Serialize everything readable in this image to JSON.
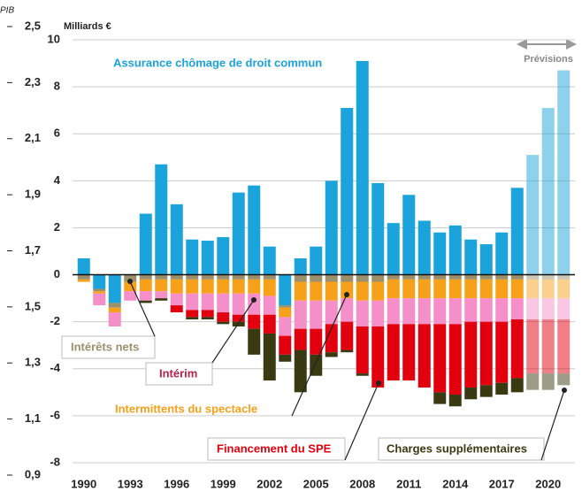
{
  "chart_data": {
    "type": "bar",
    "stacked": true,
    "title": "Milliards €",
    "y2_label": "PIB",
    "forecast_label": "Prévisions",
    "forecast_start": 2019,
    "categories": [
      "1990",
      null,
      null,
      "1993",
      null,
      null,
      "1996",
      null,
      null,
      "1999",
      null,
      null,
      "2002",
      null,
      null,
      "2005",
      null,
      null,
      "2008",
      null,
      null,
      "2011",
      null,
      null,
      "2014",
      null,
      null,
      "2017",
      null,
      null,
      "2020",
      null
    ],
    "series": [
      {
        "name": "Assurance chômage de droit commun",
        "color": "#1ba3dc",
        "values": [
          0.7,
          -0.6,
          -1.2,
          0,
          2.6,
          4.7,
          3.0,
          1.5,
          1.45,
          1.6,
          3.5,
          3.8,
          1.2,
          -1.3,
          0.7,
          1.2,
          4.0,
          7.1,
          9.1,
          3.9,
          2.2,
          3.4,
          2.3,
          1.8,
          2.1,
          1.5,
          1.3,
          1.8,
          3.7,
          5.1,
          7.1,
          8.7
        ]
      },
      {
        "name": "Intérêts nets",
        "color": "#9c8f6b",
        "values": [
          -0.2,
          -0.1,
          -0.2,
          -0.3,
          -0.2,
          -0.2,
          -0.2,
          -0.2,
          -0.2,
          -0.2,
          -0.2,
          -0.2,
          -0.2,
          -0.1,
          -0.3,
          -0.3,
          -0.3,
          -0.3,
          -0.3,
          -0.3,
          -0.2,
          -0.2,
          -0.2,
          -0.2,
          -0.2,
          -0.2,
          -0.2,
          -0.2,
          -0.2,
          -0.2,
          -0.2,
          -0.2
        ]
      },
      {
        "name": "Intermittents du spectacle",
        "color": "#f7a11a",
        "values": [
          -0.1,
          -0.1,
          -0.2,
          -0.4,
          -0.5,
          -0.5,
          -0.6,
          -0.6,
          -0.6,
          -0.6,
          -0.6,
          -0.6,
          -0.7,
          -0.4,
          -0.8,
          -0.8,
          -0.8,
          -0.7,
          -0.8,
          -0.8,
          -0.8,
          -0.8,
          -0.8,
          -0.8,
          -0.8,
          -0.8,
          -0.8,
          -0.8,
          -0.8,
          -0.8,
          -0.8,
          -0.8
        ]
      },
      {
        "name": "Intérim",
        "color": "#f48fc9",
        "values": [
          0,
          -0.5,
          -0.6,
          -0.4,
          -0.4,
          -0.3,
          -0.5,
          -0.7,
          -0.7,
          -0.8,
          -0.9,
          -0.9,
          -0.8,
          -0.8,
          -1.2,
          -1.2,
          -1.0,
          -1.0,
          -1.1,
          -1.1,
          -1.1,
          -1.1,
          -1.1,
          -1.1,
          -1.1,
          -1.0,
          -1.0,
          -1.0,
          -0.9,
          -0.9,
          -0.9,
          -0.9
        ]
      },
      {
        "name": "Financement du SPE",
        "color": "#e2000f",
        "values": [
          0,
          0,
          0,
          0,
          0,
          0,
          -0.3,
          -0.3,
          -0.3,
          -0.4,
          -0.3,
          -0.6,
          -0.8,
          -0.8,
          -0.9,
          -1.1,
          -1.2,
          -1.2,
          -2.0,
          -2.6,
          -2.4,
          -2.4,
          -2.7,
          -2.9,
          -3.0,
          -2.8,
          -2.7,
          -2.6,
          -2.5,
          -2.3,
          -2.3,
          -2.3
        ]
      },
      {
        "name": "Charges supplémentaires",
        "color": "#3a3a12",
        "values": [
          0,
          0,
          0,
          0,
          -0.1,
          -0.1,
          0,
          -0.1,
          -0.1,
          -0.1,
          -0.2,
          -1.1,
          -2.0,
          -0.3,
          -1.8,
          -0.9,
          -0.2,
          -0.1,
          -0.1,
          0,
          0,
          0,
          0,
          -0.5,
          -0.5,
          -0.5,
          -0.5,
          -0.5,
          -0.6,
          -0.7,
          -0.7,
          -0.5
        ]
      }
    ],
    "ylim": [
      -8,
      10
    ],
    "yticks": [
      -8,
      -6,
      -4,
      -2,
      0,
      2,
      4,
      6,
      8,
      10
    ],
    "y2lim": [
      0.9,
      2.5
    ],
    "y2ticks": [
      {
        "value": 0.9,
        "label": "0,9"
      },
      {
        "value": 1.1,
        "label": "1,1"
      },
      {
        "value": 1.3,
        "label": "1,3"
      },
      {
        "value": 1.5,
        "label": "1,5"
      },
      {
        "value": 1.7,
        "label": "1,7"
      },
      {
        "value": 1.9,
        "label": "1,9"
      },
      {
        "value": 2.1,
        "label": "2,1"
      },
      {
        "value": 2.3,
        "label": "2,3"
      },
      {
        "value": 2.5,
        "label": "2,5"
      }
    ],
    "grid": true
  }
}
